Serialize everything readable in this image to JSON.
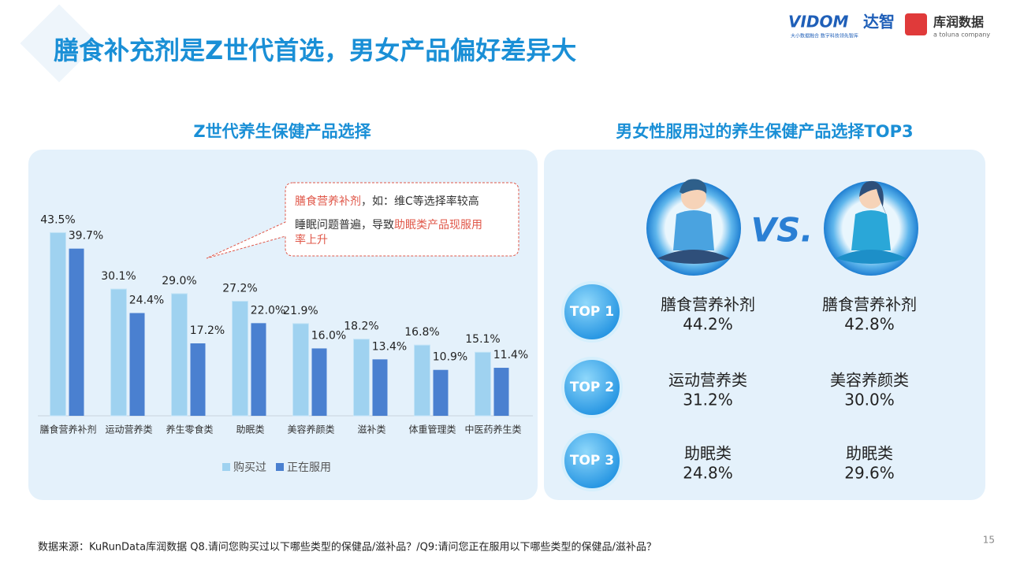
{
  "title": "膳食补充剂是Z世代首选，男女产品偏好差异大",
  "logos": {
    "vidom": "VIDOM",
    "dazhi": "达智",
    "dazhi_slogan": "大小数据融合 数字科技领先智库",
    "kurun": "库润数据",
    "kurun_sub": "a toluna company"
  },
  "chart_data": {
    "type": "bar",
    "title": "Z世代养生保健产品选择",
    "categories": [
      "膳食营养补剂",
      "运动营养类",
      "养生零食类",
      "助眠类",
      "美容养颜类",
      "滋补类",
      "体重管理类",
      "中医药养生类"
    ],
    "series": [
      {
        "name": "购买过",
        "color": "#9fd2f0",
        "values": [
          43.5,
          30.1,
          29.0,
          27.2,
          21.9,
          18.2,
          16.8,
          15.1
        ],
        "value_labels": [
          "43.5%",
          "30.1%",
          "29.0%",
          "27.2%",
          "21.9%",
          "18.2%",
          "16.8%",
          "15.1%"
        ]
      },
      {
        "name": "正在服用",
        "color": "#4a80d0",
        "values": [
          39.7,
          24.4,
          17.2,
          22.0,
          16.0,
          13.4,
          10.9,
          11.4
        ],
        "value_labels": [
          "39.7%",
          "24.4%",
          "17.2%",
          "22.0%",
          "16.0%",
          "13.4%",
          "10.9%",
          "11.4%"
        ]
      }
    ],
    "ylim": [
      0,
      46
    ],
    "legend": "bottom",
    "annotation": [
      "膳食营养补剂",
      "，如：维C等选择率较高",
      "睡眠问题普遍，导致",
      "助眠类产品现服用",
      "率上升"
    ]
  },
  "comparison": {
    "title": "男女性服用过的养生保健产品选择TOP3",
    "vs": "VS.",
    "rows": [
      {
        "rank": "TOP 1",
        "male_name": "膳食营养补剂",
        "male_value": "44.2%",
        "female_name": "膳食营养补剂",
        "female_value": "42.8%"
      },
      {
        "rank": "TOP 2",
        "male_name": "运动营养类",
        "male_value": "31.2%",
        "female_name": "美容养颜类",
        "female_value": "30.0%"
      },
      {
        "rank": "TOP 3",
        "male_name": "助眠类",
        "male_value": "24.8%",
        "female_name": "助眠类",
        "female_value": "29.6%"
      }
    ]
  },
  "footer": {
    "source": "数据来源：KuRunData库润数据 Q8.请问您购买过以下哪些类型的保健品/滋补品？/Q9:请问您正在服用以下哪些类型的保健品/滋补品？",
    "page": "15"
  }
}
